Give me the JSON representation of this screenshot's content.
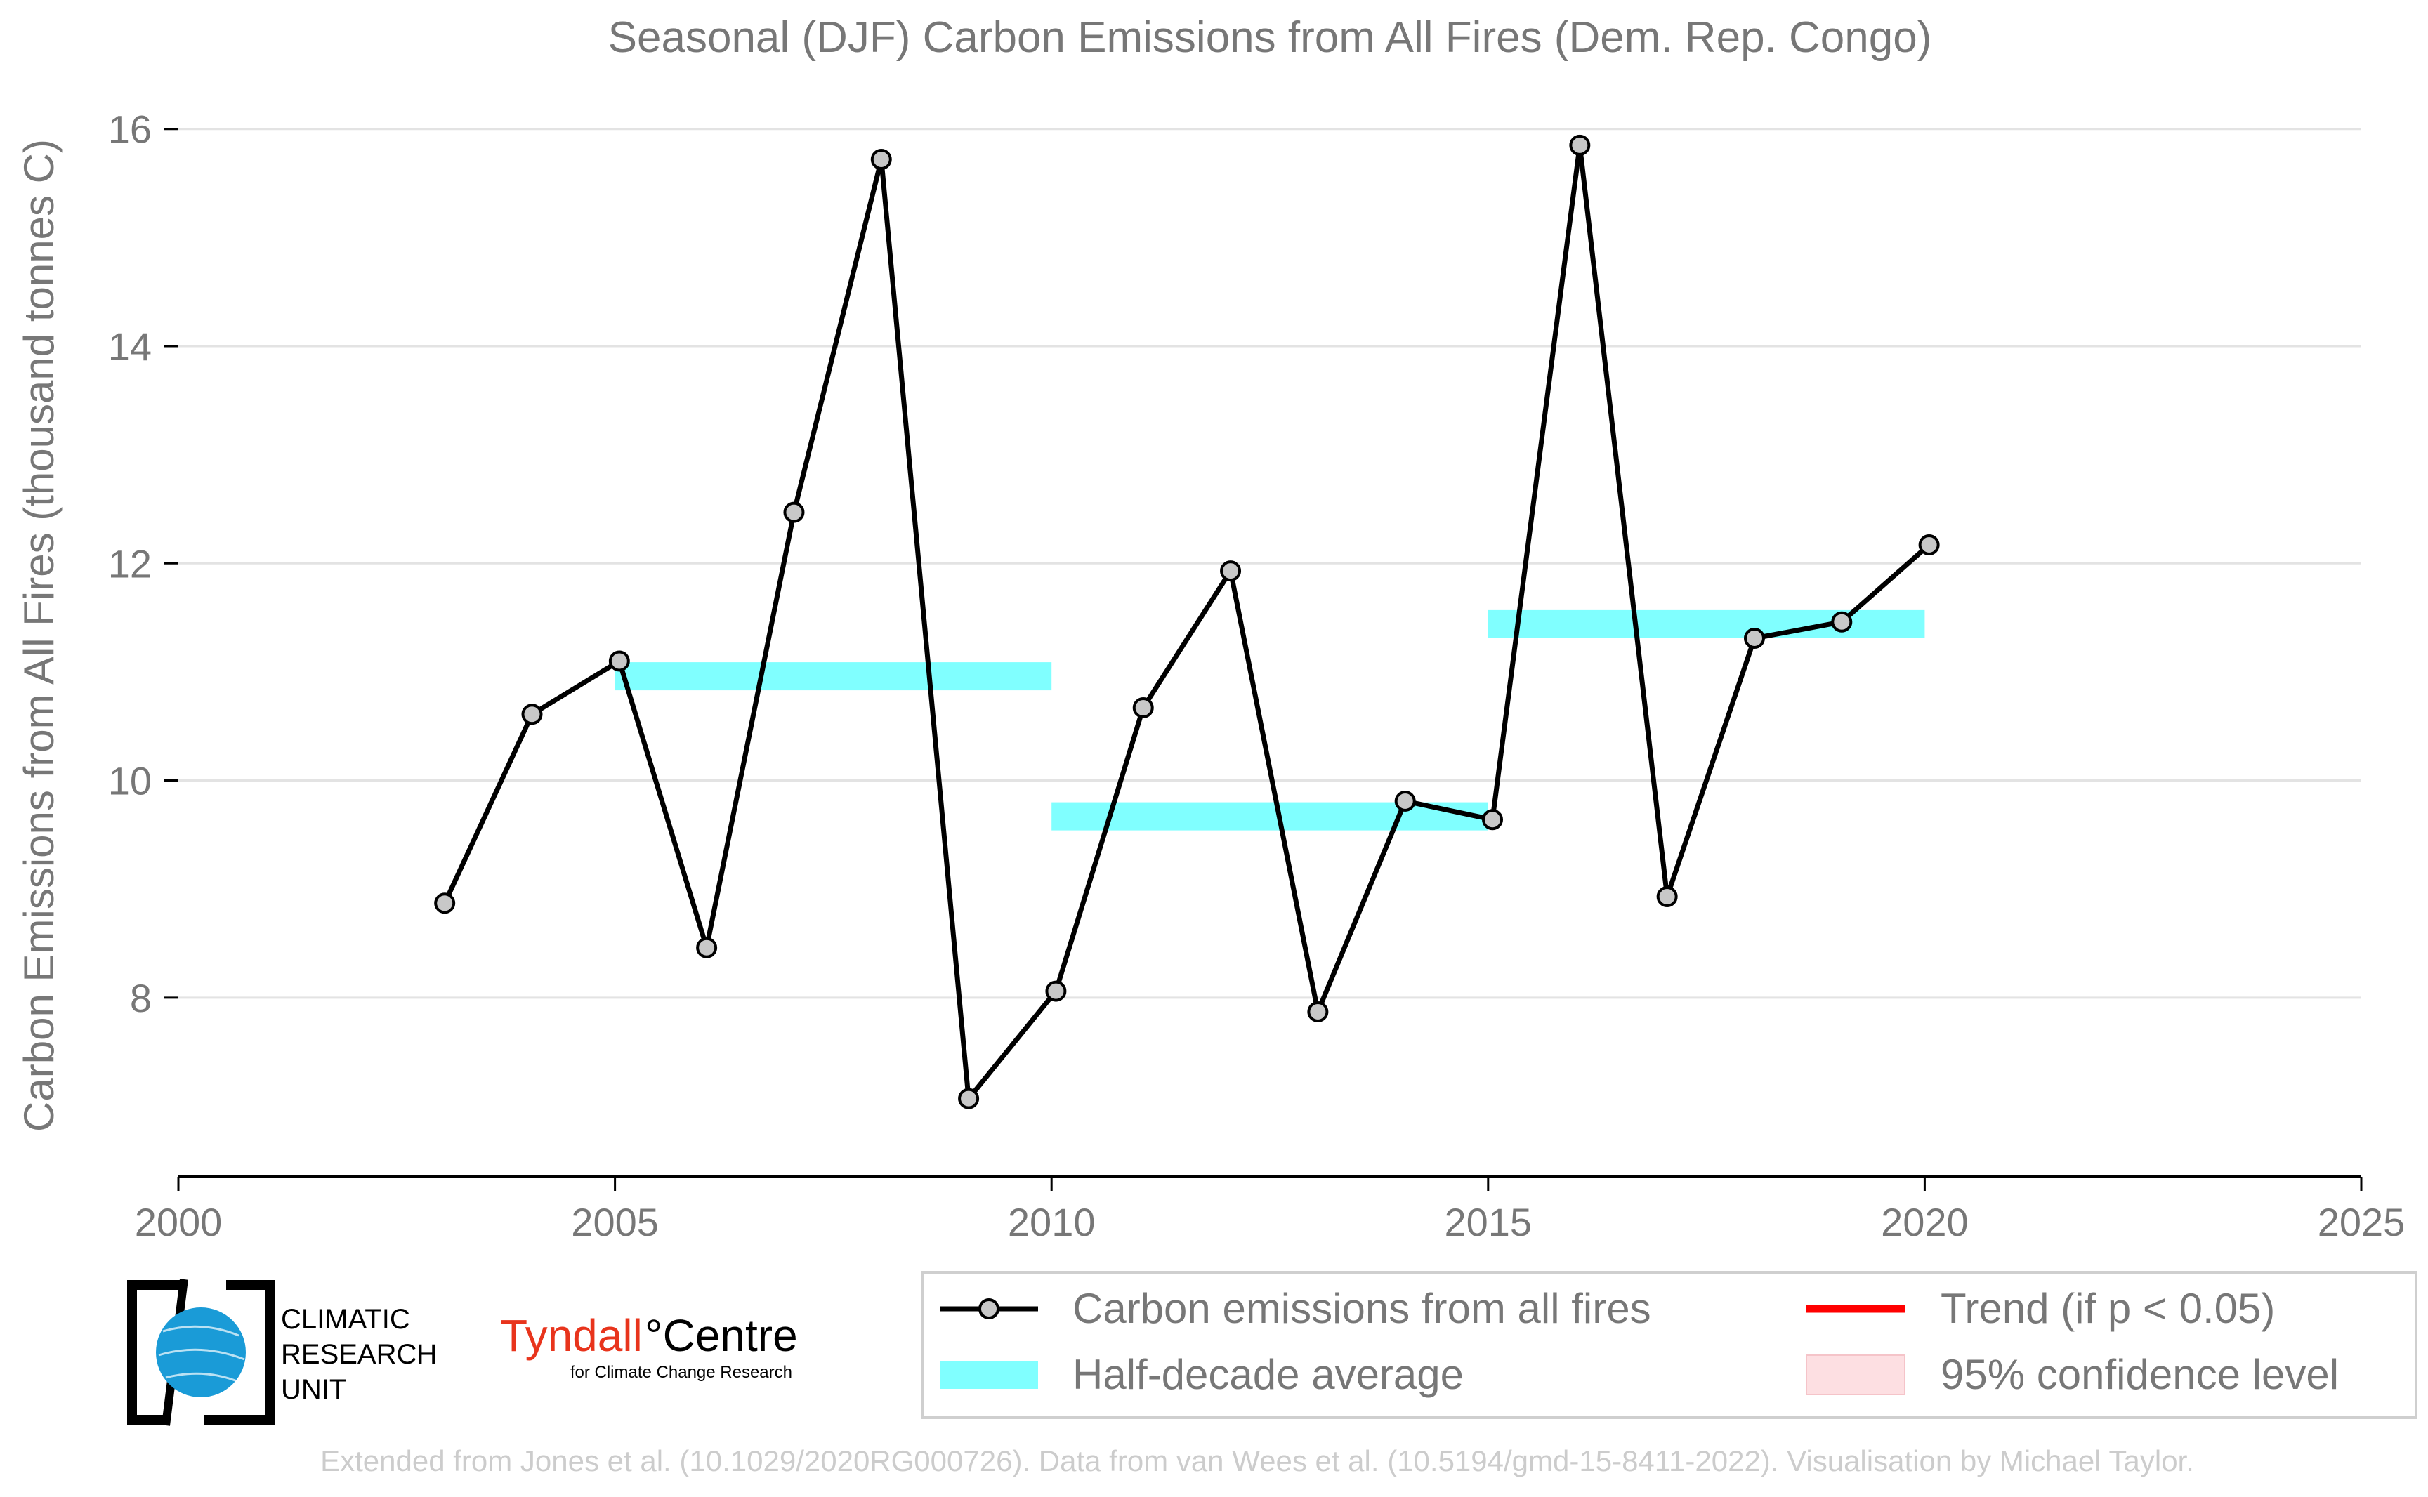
{
  "chart_data": {
    "type": "line",
    "title": "Seasonal (DJF) Carbon Emissions from All Fires (Dem. Rep. Congo)",
    "xlabel": "",
    "ylabel": "Carbon Emissions from All Fires (thousand tonnes C)",
    "xlim": [
      2000,
      2025
    ],
    "ylim": [
      6.35,
      16.8
    ],
    "x_ticks": [
      2000,
      2005,
      2010,
      2015,
      2020,
      2025
    ],
    "y_ticks": [
      8,
      10,
      12,
      14,
      16
    ],
    "grid": "horizontal",
    "legend_position": "bottom-right",
    "series": [
      {
        "name": "Carbon emissions from all fires",
        "x": [
          2003,
          2004,
          2005,
          2006,
          2007,
          2008,
          2009,
          2010,
          2011,
          2012,
          2013,
          2014,
          2015,
          2016,
          2017,
          2018,
          2019,
          2020
        ],
        "values": [
          8.87,
          10.61,
          11.1,
          8.46,
          12.47,
          15.72,
          7.07,
          8.06,
          10.67,
          11.93,
          7.87,
          9.81,
          9.64,
          15.85,
          8.93,
          11.31,
          11.46,
          12.17
        ]
      }
    ],
    "half_decade_average": {
      "name": "Half-decade average",
      "segments": [
        {
          "x_start": 2005,
          "x_end": 2010,
          "value": 10.96
        },
        {
          "x_start": 2010,
          "x_end": 2015,
          "value": 9.67
        },
        {
          "x_start": 2015,
          "x_end": 2020,
          "value": 11.44
        }
      ]
    },
    "legend": {
      "line": "Carbon emissions from all fires",
      "average": "Half-decade average",
      "trend": "Trend (if p < 0.05)",
      "confidence": "95% confidence level"
    },
    "colors": {
      "line": "#000000",
      "marker_fill": "#c8c8c8",
      "average": "#80ffff",
      "trend": "#ff0000",
      "confidence": "#fddfe2",
      "text": "#777777",
      "grid": "#e3e3e3"
    }
  },
  "logos": {
    "cru": [
      "CLIMATIC",
      "RESEARCH",
      "UNIT"
    ],
    "tyndall_main": "Tyndall",
    "tyndall_centre": "°Centre",
    "tyndall_sub": "for Climate Change Research"
  },
  "footer": "Extended from Jones et al. (10.1029/2020RG000726). Data from van Wees et al. (10.5194/gmd-15-8411-2022). Visualisation by Michael Taylor."
}
